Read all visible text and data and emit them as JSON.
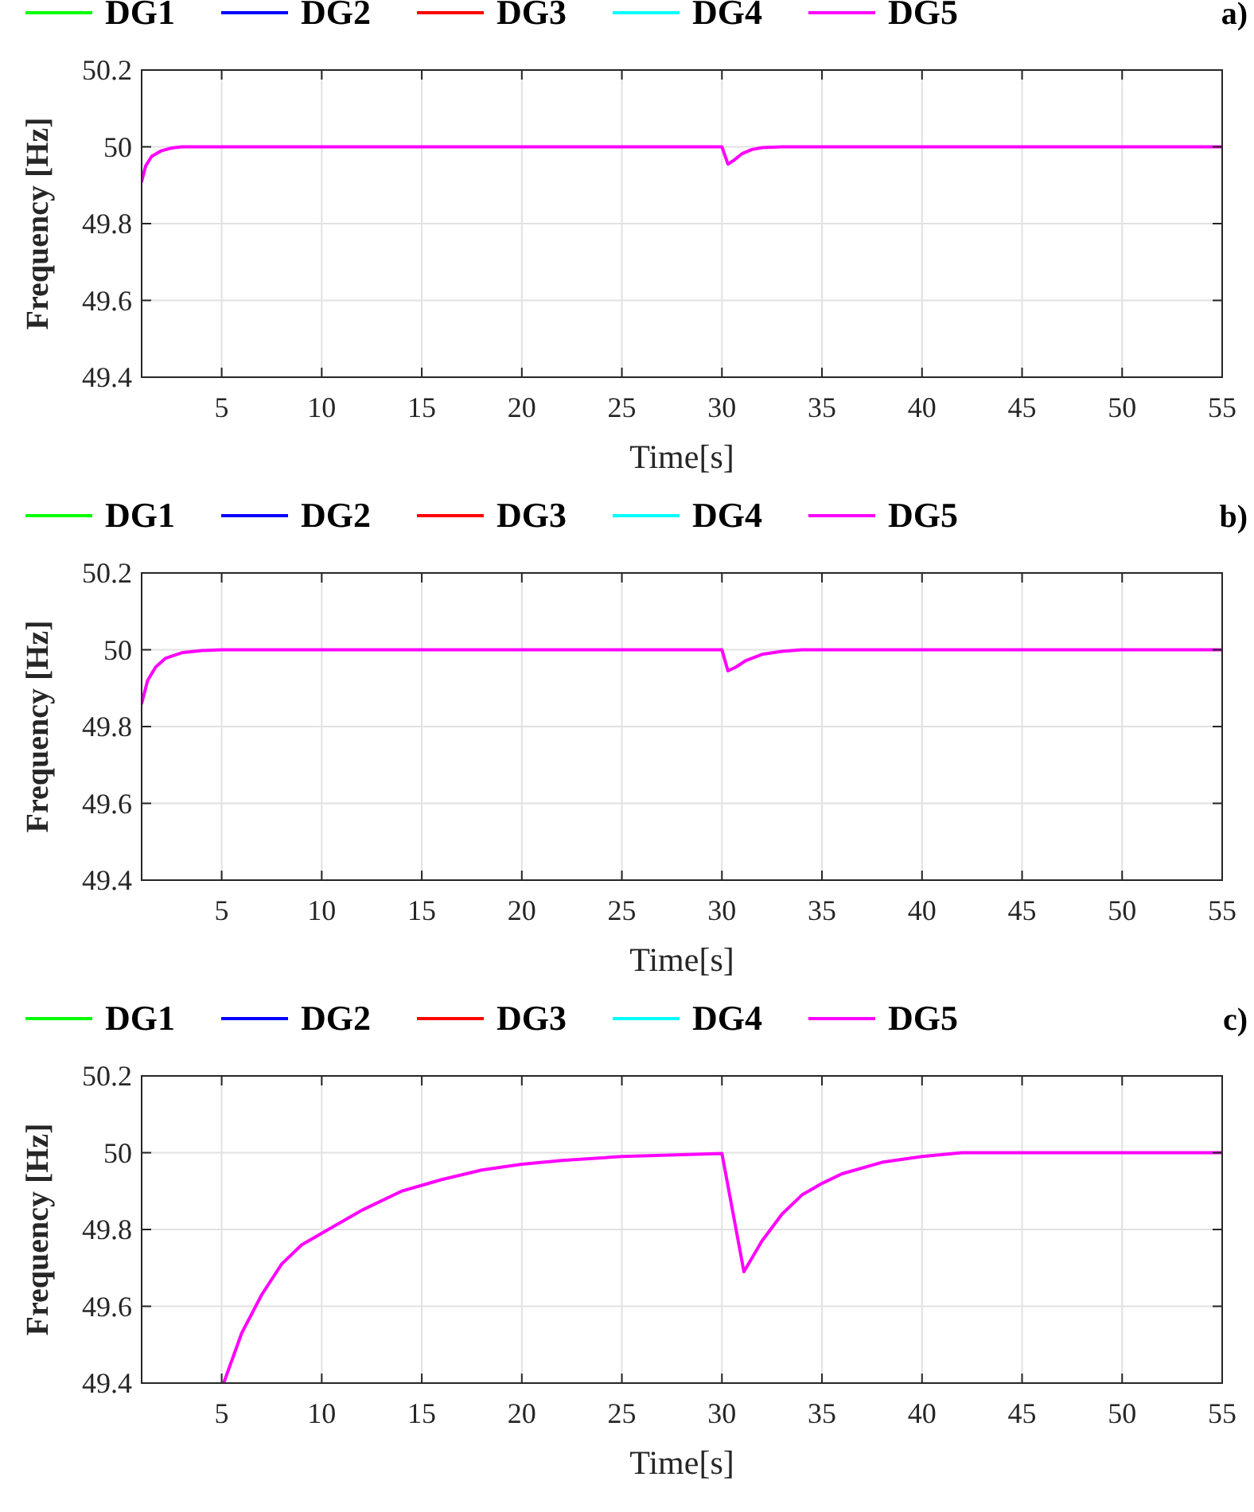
{
  "chart_data": [
    {
      "type": "line",
      "xlabel": "Time[s]",
      "ylabel": "Frequency [Hz]",
      "annotations": [
        "a)"
      ],
      "xlim": [
        1,
        55
      ],
      "ylim": [
        49.4,
        50.2
      ],
      "xticks": [
        5,
        10,
        15,
        20,
        25,
        30,
        35,
        40,
        45,
        50,
        55
      ],
      "yticks": [
        49.4,
        49.6,
        49.8,
        50,
        50.2
      ],
      "grid": true,
      "legend": "top",
      "line_style": "solid",
      "x": [
        1,
        1.2,
        1.5,
        2,
        2.5,
        3,
        5,
        30,
        30.3,
        30.6,
        31,
        31.5,
        32,
        33,
        55
      ],
      "series": [
        {
          "name": "DG1",
          "color": "#00ff00",
          "values": [
            null,
            null,
            null,
            null,
            null,
            null,
            null,
            null,
            null,
            null,
            null,
            null,
            null,
            null,
            null
          ]
        },
        {
          "name": "DG2",
          "color": "#0000ff",
          "values": [
            null,
            null,
            null,
            null,
            null,
            null,
            null,
            null,
            null,
            null,
            null,
            null,
            null,
            null,
            null
          ]
        },
        {
          "name": "DG3",
          "color": "#ff0000",
          "values": [
            null,
            null,
            null,
            null,
            null,
            null,
            null,
            null,
            null,
            null,
            null,
            null,
            null,
            null,
            null
          ]
        },
        {
          "name": "DG4",
          "color": "#00ffff",
          "values": [
            null,
            null,
            null,
            null,
            null,
            null,
            null,
            null,
            null,
            null,
            null,
            null,
            null,
            null,
            null
          ]
        },
        {
          "name": "DG5",
          "color": "#ff00ff",
          "values": [
            49.91,
            49.95,
            49.975,
            49.99,
            49.997,
            50,
            50,
            50,
            49.955,
            49.965,
            49.982,
            49.993,
            49.998,
            50,
            50
          ]
        }
      ]
    },
    {
      "type": "line",
      "xlabel": "Time[s]",
      "ylabel": "Frequency [Hz]",
      "annotations": [
        "b)"
      ],
      "xlim": [
        1,
        55
      ],
      "ylim": [
        49.4,
        50.2
      ],
      "xticks": [
        5,
        10,
        15,
        20,
        25,
        30,
        35,
        40,
        45,
        50,
        55
      ],
      "yticks": [
        49.4,
        49.6,
        49.8,
        50,
        50.2
      ],
      "grid": true,
      "legend": "top",
      "line_style": "solid",
      "x": [
        1,
        1.3,
        1.7,
        2.2,
        3,
        4,
        5,
        30,
        30.3,
        30.7,
        31.2,
        32,
        33,
        34,
        55
      ],
      "series": [
        {
          "name": "DG1",
          "color": "#00ff00",
          "values": [
            null,
            null,
            null,
            null,
            null,
            null,
            null,
            null,
            null,
            null,
            null,
            null,
            null,
            null,
            null
          ]
        },
        {
          "name": "DG2",
          "color": "#0000ff",
          "values": [
            null,
            null,
            null,
            null,
            null,
            null,
            null,
            null,
            null,
            null,
            null,
            null,
            null,
            null,
            null
          ]
        },
        {
          "name": "DG3",
          "color": "#ff0000",
          "values": [
            null,
            null,
            null,
            null,
            null,
            null,
            null,
            null,
            null,
            null,
            null,
            null,
            null,
            null,
            null
          ]
        },
        {
          "name": "DG4",
          "color": "#00ffff",
          "values": [
            null,
            null,
            null,
            null,
            null,
            null,
            null,
            null,
            null,
            null,
            null,
            null,
            null,
            null,
            null
          ]
        },
        {
          "name": "DG5",
          "color": "#ff00ff",
          "values": [
            49.86,
            49.92,
            49.955,
            49.978,
            49.992,
            49.998,
            50,
            50,
            49.945,
            49.955,
            49.972,
            49.988,
            49.996,
            50,
            50
          ]
        }
      ]
    },
    {
      "type": "line",
      "xlabel": "Time[s]",
      "ylabel": "Frequency [Hz]",
      "annotations": [
        "c)"
      ],
      "xlim": [
        1,
        55
      ],
      "ylim": [
        49.4,
        50.2
      ],
      "xticks": [
        5,
        10,
        15,
        20,
        25,
        30,
        35,
        40,
        45,
        50,
        55
      ],
      "yticks": [
        49.4,
        49.6,
        49.8,
        50,
        50.2
      ],
      "grid": true,
      "legend": "top",
      "line_style": "solid",
      "x": [
        5.1,
        6,
        7,
        8,
        9,
        10,
        12,
        14,
        16,
        18,
        20,
        22,
        25,
        28,
        30,
        31.1,
        32,
        33,
        34,
        35,
        36,
        38,
        40,
        42,
        45,
        50,
        55
      ],
      "series": [
        {
          "name": "DG1",
          "color": "#00ff00",
          "values": [
            null,
            null,
            null,
            null,
            null,
            null,
            null,
            null,
            null,
            null,
            null,
            null,
            null,
            null,
            null,
            null,
            null,
            null,
            null,
            null,
            null,
            null,
            null,
            null,
            null,
            null,
            null
          ]
        },
        {
          "name": "DG2",
          "color": "#0000ff",
          "values": [
            null,
            null,
            null,
            null,
            null,
            null,
            null,
            null,
            null,
            null,
            null,
            null,
            null,
            null,
            null,
            null,
            null,
            null,
            null,
            null,
            null,
            null,
            null,
            null,
            null,
            null,
            null
          ]
        },
        {
          "name": "DG3",
          "color": "#ff0000",
          "values": [
            null,
            null,
            null,
            null,
            null,
            null,
            null,
            null,
            null,
            null,
            null,
            null,
            null,
            null,
            null,
            null,
            null,
            null,
            null,
            null,
            null,
            null,
            null,
            null,
            null,
            null,
            null
          ]
        },
        {
          "name": "DG4",
          "color": "#00ffff",
          "values": [
            null,
            null,
            null,
            null,
            null,
            null,
            null,
            null,
            null,
            null,
            null,
            null,
            null,
            null,
            null,
            null,
            null,
            null,
            null,
            null,
            null,
            null,
            null,
            null,
            null,
            null,
            null
          ]
        },
        {
          "name": "DG5",
          "color": "#ff00ff",
          "values": [
            49.4,
            49.53,
            49.63,
            49.71,
            49.76,
            49.79,
            49.85,
            49.9,
            49.93,
            49.955,
            49.97,
            49.98,
            49.99,
            49.995,
            49.998,
            49.69,
            49.77,
            49.84,
            49.89,
            49.92,
            49.945,
            49.975,
            49.99,
            50,
            50,
            50,
            50
          ]
        }
      ]
    }
  ]
}
